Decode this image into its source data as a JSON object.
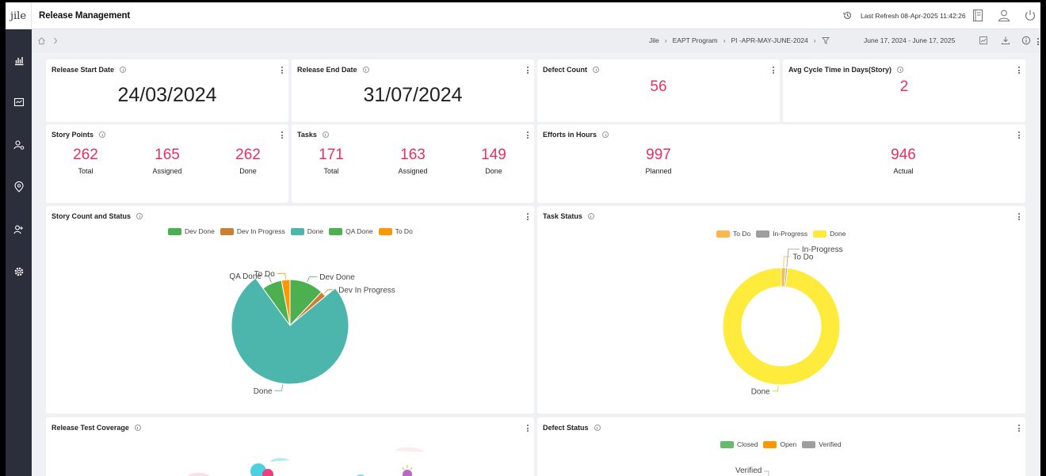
{
  "app": {
    "logo": "jile",
    "title": "Release Management",
    "last_refresh": "Last Refresh 08-Apr-2025 11:42:26"
  },
  "breadcrumb": {
    "items": [
      "Jile",
      "EAPT Program",
      "PI -APR-MAY-JUNE-2024"
    ],
    "date_range": "June 17, 2024 - June 17, 2025"
  },
  "cards": {
    "release_start": {
      "title": "Release Start Date",
      "value": "24/03/2024"
    },
    "release_end": {
      "title": "Release End Date",
      "value": "31/07/2024"
    },
    "defect_count": {
      "title": "Defect Count",
      "value": "56"
    },
    "avg_cycle": {
      "title": "Avg Cycle Time in Days(Story)",
      "value": "2"
    },
    "story_points": {
      "title": "Story Points",
      "stats": [
        {
          "value": "262",
          "label": "Total"
        },
        {
          "value": "165",
          "label": "Assigned"
        },
        {
          "value": "262",
          "label": "Done"
        }
      ]
    },
    "tasks": {
      "title": "Tasks",
      "stats": [
        {
          "value": "171",
          "label": "Total"
        },
        {
          "value": "163",
          "label": "Assigned"
        },
        {
          "value": "149",
          "label": "Done"
        }
      ]
    },
    "efforts": {
      "title": "Efforts in Hours",
      "stats": [
        {
          "value": "997",
          "label": "Planned"
        },
        {
          "value": "946",
          "label": "Actual"
        }
      ]
    },
    "story_status": {
      "title": "Story Count and Status"
    },
    "task_status": {
      "title": "Task Status"
    },
    "test_coverage": {
      "title": "Release Test Coverage"
    },
    "defect_status": {
      "title": "Defect Status",
      "legend": [
        {
          "name": "Closed",
          "color": "#66bb6a"
        },
        {
          "name": "Open",
          "color": "#ff9800"
        },
        {
          "name": "Verified",
          "color": "#9e9e9e"
        }
      ],
      "visible_label": "Verified"
    }
  },
  "chart_data": [
    {
      "type": "pie",
      "title": "Story Count and Status",
      "legend": [
        {
          "name": "Dev Done",
          "color": "#4caf50"
        },
        {
          "name": "Dev In Progress",
          "color": "#cd7f32"
        },
        {
          "name": "Done",
          "color": "#4db6ac"
        },
        {
          "name": "QA Done",
          "color": "#4caf50"
        },
        {
          "name": "To Do",
          "color": "#ff9800"
        }
      ],
      "slices": [
        {
          "name": "Dev Done",
          "value": 12,
          "color": "#4caf50"
        },
        {
          "name": "Dev In Progress",
          "value": 2,
          "color": "#cd7f32"
        },
        {
          "name": "Done",
          "value": 76,
          "color": "#4db6ac"
        },
        {
          "name": "QA Done",
          "value": 7,
          "color": "#4caf50"
        },
        {
          "name": "To Do",
          "value": 3,
          "color": "#ff9800"
        }
      ],
      "legend_position": "top"
    },
    {
      "type": "pie",
      "title": "Task Status",
      "donut": true,
      "legend": [
        {
          "name": "To Do",
          "color": "#ffb74d"
        },
        {
          "name": "In-Progress",
          "color": "#9e9e9e"
        },
        {
          "name": "Done",
          "color": "#ffeb3b"
        }
      ],
      "slices": [
        {
          "name": "To Do",
          "value": 1.2,
          "color": "#ffb74d"
        },
        {
          "name": "In-Progress",
          "value": 0.5,
          "color": "#9e9e9e"
        },
        {
          "name": "Done",
          "value": 98.3,
          "color": "#ffeb3b"
        }
      ],
      "legend_position": "top"
    }
  ]
}
